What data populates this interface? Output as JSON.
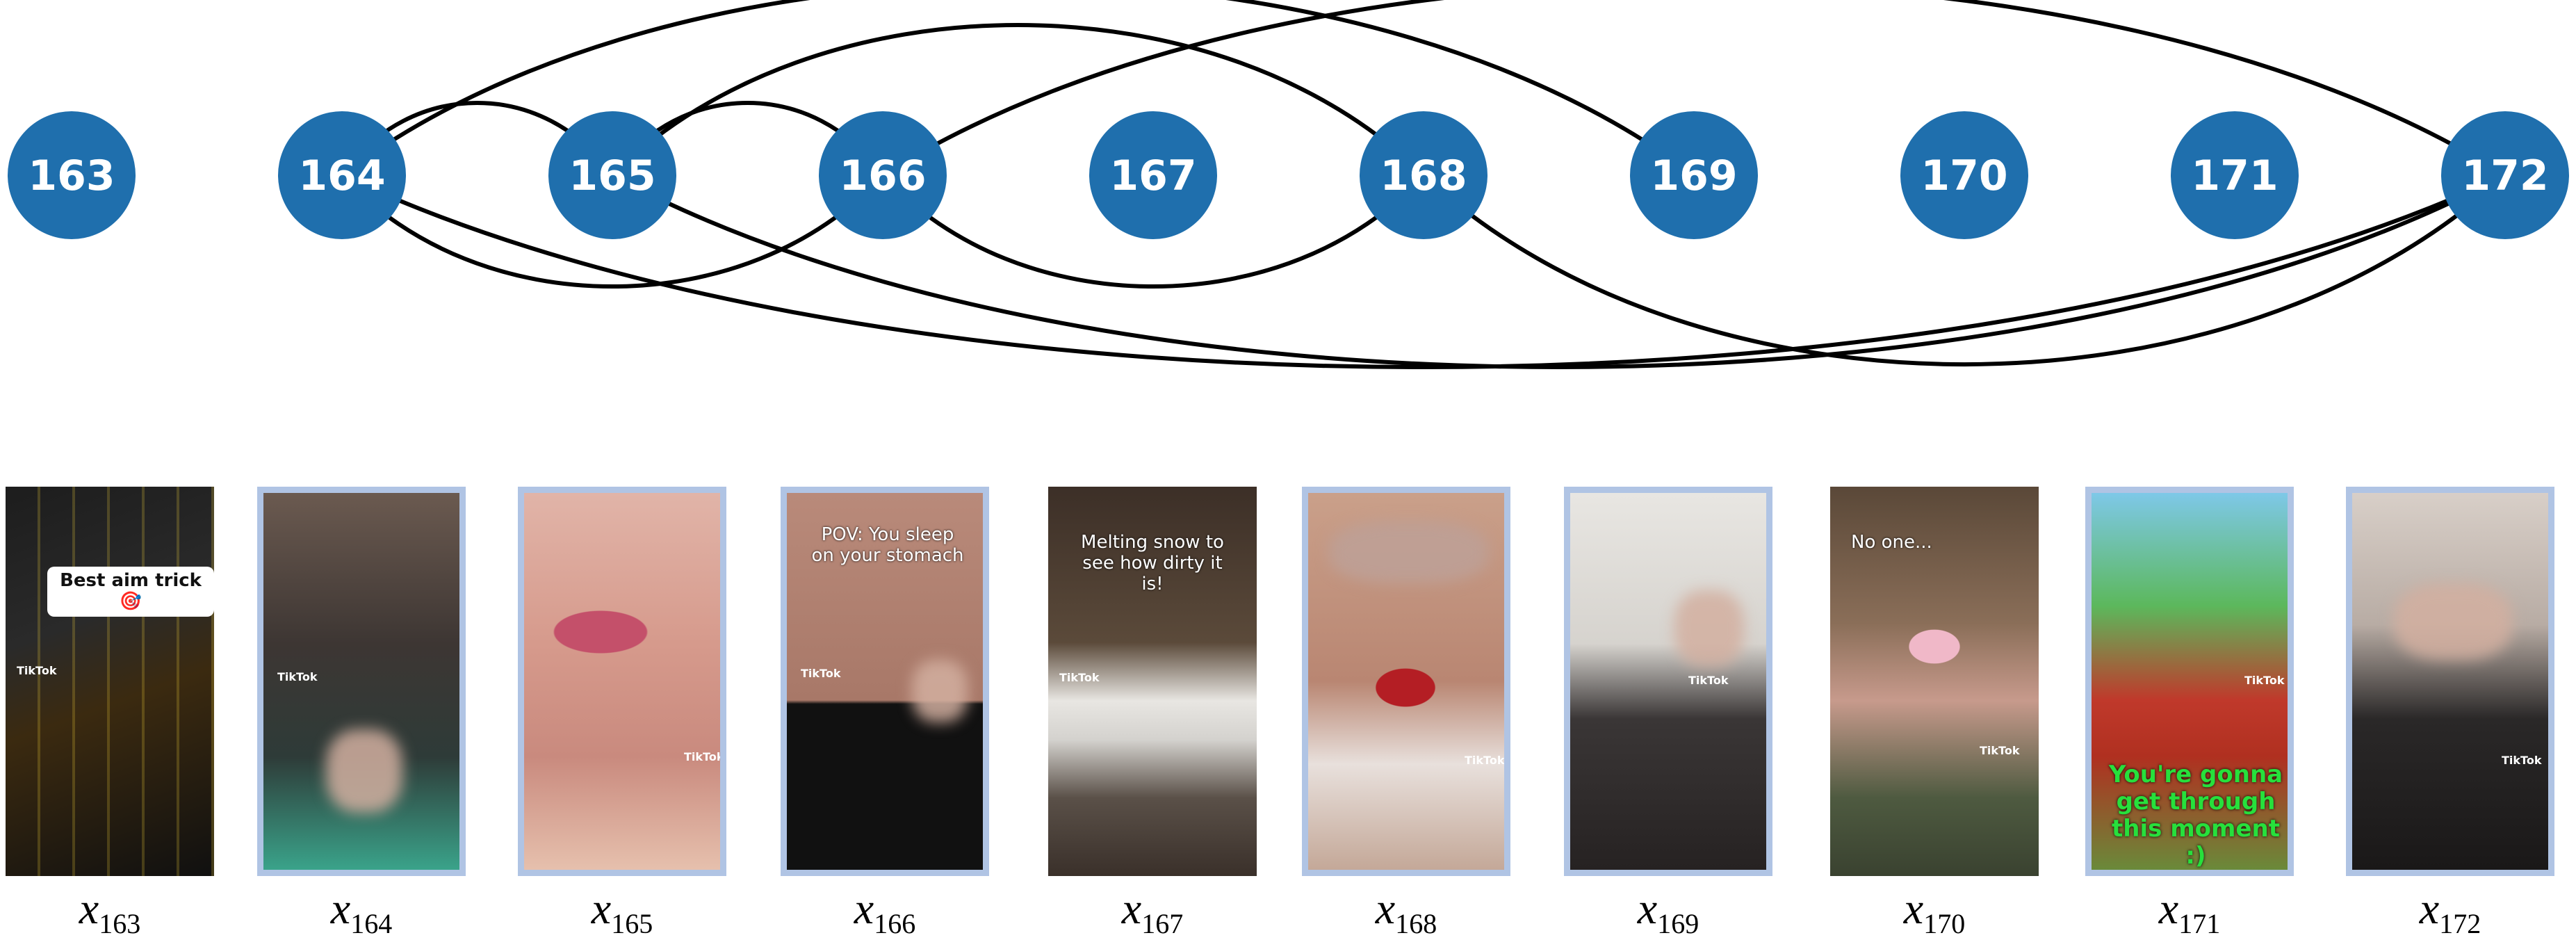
{
  "colors": {
    "node": "#1f6fad",
    "node_text": "#ffffff",
    "edge": "#000000",
    "highlight_border": "#b0c4e4"
  },
  "nodes": [
    "163",
    "164",
    "165",
    "166",
    "167",
    "168",
    "169",
    "170",
    "171",
    "172"
  ],
  "edges": [
    [
      "164",
      "165"
    ],
    [
      "164",
      "166"
    ],
    [
      "164",
      "169"
    ],
    [
      "164",
      "172"
    ],
    [
      "165",
      "168"
    ],
    [
      "165",
      "172"
    ],
    [
      "165",
      "166"
    ],
    [
      "166",
      "168"
    ],
    [
      "166",
      "172"
    ],
    [
      "168",
      "172"
    ]
  ],
  "frames": [
    {
      "label_var": "x",
      "label_sub": "163",
      "highlighted": false,
      "caption": "Best aim trick🎯",
      "tiktok": "TikTok"
    },
    {
      "label_var": "x",
      "label_sub": "164",
      "highlighted": true,
      "caption": "",
      "tiktok": "TikTok"
    },
    {
      "label_var": "x",
      "label_sub": "165",
      "highlighted": true,
      "caption": "",
      "tiktok": "TikTok"
    },
    {
      "label_var": "x",
      "label_sub": "166",
      "highlighted": true,
      "caption": "POV: You sleep on your stomach",
      "tiktok": "TikTok"
    },
    {
      "label_var": "x",
      "label_sub": "167",
      "highlighted": false,
      "caption": "Melting snow to see how dirty it is!",
      "tiktok": "TikTok"
    },
    {
      "label_var": "x",
      "label_sub": "168",
      "highlighted": true,
      "caption": "",
      "tiktok": "TikTok"
    },
    {
      "label_var": "x",
      "label_sub": "169",
      "highlighted": true,
      "caption": "",
      "tiktok": "TikTok"
    },
    {
      "label_var": "x",
      "label_sub": "170",
      "highlighted": false,
      "caption": "No one...",
      "tiktok": "TikTok"
    },
    {
      "label_var": "x",
      "label_sub": "171",
      "highlighted": true,
      "caption": "You're gonna get through this moment :)",
      "tiktok": "TikTok"
    },
    {
      "label_var": "x",
      "label_sub": "172",
      "highlighted": true,
      "caption": "",
      "tiktok": "TikTok"
    }
  ]
}
